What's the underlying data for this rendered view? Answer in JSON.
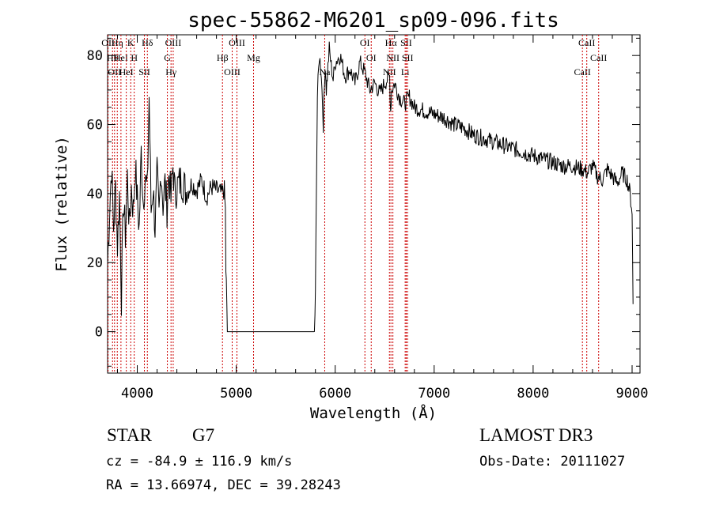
{
  "chart_data": {
    "type": "line",
    "title": "spec-55862-M6201_sp09-096.fits",
    "xlabel": "Wavelength (Å)",
    "ylabel": "Flux (relative)",
    "xlim": [
      3700,
      9080
    ],
    "ylim": [
      -12,
      86
    ],
    "x_ticks": [
      4000,
      5000,
      6000,
      7000,
      8000,
      9000
    ],
    "y_ticks": [
      0,
      20,
      40,
      60,
      80
    ],
    "grid": false,
    "series": [
      {
        "name": "spectrum",
        "x": [
          3700,
          3720,
          3740,
          3760,
          3780,
          3800,
          3820,
          3840,
          3860,
          3880,
          3900,
          3920,
          3940,
          3960,
          3980,
          4000,
          4020,
          4040,
          4060,
          4080,
          4100,
          4120,
          4140,
          4160,
          4180,
          4200,
          4220,
          4240,
          4260,
          4280,
          4300,
          4320,
          4340,
          4360,
          4380,
          4400,
          4450,
          4500,
          4550,
          4600,
          4650,
          4700,
          4750,
          4800,
          4850,
          4880,
          4890,
          4895,
          4900,
          4910,
          4920,
          5000,
          5200,
          5500,
          5700,
          5790,
          5800,
          5810,
          5820,
          5840,
          5860,
          5880,
          5900,
          5910,
          5920,
          5940,
          5960,
          5980,
          6000,
          6050,
          6100,
          6150,
          6200,
          6250,
          6300,
          6350,
          6400,
          6450,
          6500,
          6550,
          6560,
          6570,
          6600,
          6650,
          6700,
          6750,
          6800,
          6900,
          7000,
          7100,
          7200,
          7300,
          7400,
          7500,
          7600,
          7700,
          7800,
          7900,
          8000,
          8100,
          8200,
          8300,
          8400,
          8500,
          8550,
          8600,
          8650,
          8700,
          8750,
          8800,
          8850,
          8900,
          8950,
          8980,
          9000,
          9010
        ],
        "y": [
          20,
          35,
          48,
          30,
          42,
          25,
          40,
          10,
          38,
          28,
          45,
          30,
          42,
          35,
          48,
          38,
          30,
          52,
          38,
          45,
          40,
          68,
          35,
          42,
          30,
          45,
          33,
          48,
          37,
          43,
          36,
          46,
          38,
          48,
          40,
          42,
          44,
          40,
          43,
          41,
          44,
          39,
          42,
          41,
          40,
          41,
          35,
          18,
          14,
          0,
          0,
          0,
          0,
          0,
          0,
          0,
          10,
          42,
          68,
          80,
          75,
          60,
          78,
          70,
          74,
          82,
          77,
          73,
          78,
          80,
          74,
          76,
          72,
          78,
          75,
          70,
          72,
          69,
          72,
          74,
          64,
          70,
          72,
          68,
          66,
          68,
          65,
          64,
          63,
          62,
          60,
          59,
          57,
          56,
          55,
          54,
          53,
          52,
          51,
          50,
          49,
          48,
          48,
          47,
          46,
          48,
          45,
          44,
          47,
          45,
          43,
          46,
          44,
          40,
          35,
          8
        ],
        "color": "#000000"
      }
    ],
    "line_markers": [
      {
        "x": 3705,
        "label": "OII",
        "color": "#cc0000"
      },
      {
        "x": 3750,
        "label": "Hθ",
        "color": "#cc0000"
      },
      {
        "x": 3770,
        "label": "OII",
        "color": "#cc0000"
      },
      {
        "x": 3798,
        "label": "Hη",
        "color": "#cc0000"
      },
      {
        "x": 3835,
        "label": "HeI",
        "color": "#cc0000"
      },
      {
        "x": 3889,
        "label": "HeI",
        "color": "#cc0000"
      },
      {
        "x": 3934,
        "label": "K",
        "color": "#cc0000"
      },
      {
        "x": 3969,
        "label": "H",
        "color": "#cc0000"
      },
      {
        "x": 4072,
        "label": "SII",
        "color": "#cc0000"
      },
      {
        "x": 4102,
        "label": "Hδ",
        "color": "#cc0000"
      },
      {
        "x": 4304,
        "label": "G",
        "color": "#cc0000"
      },
      {
        "x": 4341,
        "label": "Hγ",
        "color": "#cc0000"
      },
      {
        "x": 4363,
        "label": "OIII",
        "color": "#cc0000"
      },
      {
        "x": 4861,
        "label": "Hβ",
        "color": "#cc0000"
      },
      {
        "x": 4959,
        "label": "OIII",
        "color": "#cc0000"
      },
      {
        "x": 5007,
        "label": "OIII",
        "color": "#cc0000"
      },
      {
        "x": 5175,
        "label": "Mg",
        "color": "#cc0000"
      },
      {
        "x": 5894,
        "label": "Na",
        "color": "#cc0000"
      },
      {
        "x": 6300,
        "label": "OI",
        "color": "#cc0000"
      },
      {
        "x": 6364,
        "label": "OI",
        "color": "#cc0000"
      },
      {
        "x": 6548,
        "label": "NII",
        "color": "#cc0000"
      },
      {
        "x": 6563,
        "label": "Hα",
        "color": "#cc0000"
      },
      {
        "x": 6583,
        "label": "NII",
        "color": "#cc0000"
      },
      {
        "x": 6707,
        "label": "Li",
        "color": "#cc0000"
      },
      {
        "x": 6717,
        "label": "SII",
        "color": "#cc0000"
      },
      {
        "x": 6731,
        "label": "SII",
        "color": "#cc0000"
      },
      {
        "x": 8498,
        "label": "CaII",
        "color": "#cc0000"
      },
      {
        "x": 8542,
        "label": "CaII",
        "color": "#cc0000"
      },
      {
        "x": 8662,
        "label": "CaII",
        "color": "#cc0000"
      }
    ]
  },
  "info": {
    "class": "STAR",
    "subclass": "G7",
    "survey": "LAMOST DR3",
    "cz": "cz = -84.9 ± 116.9 km/s",
    "obs_date": "Obs-Date: 20111027",
    "coords": "RA =  13.66974, DEC =  39.28243"
  }
}
